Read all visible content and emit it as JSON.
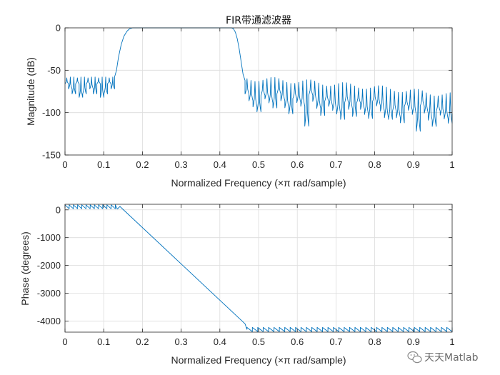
{
  "chart_data": [
    {
      "type": "line",
      "title": "FIR带通滤波器",
      "xlabel": "Normalized Frequency  (×π rad/sample)",
      "ylabel": "Magnitude (dB)",
      "xlim": [
        0,
        1
      ],
      "ylim": [
        -150,
        0
      ],
      "xticks": [
        "0",
        "0.1",
        "0.2",
        "0.3",
        "0.4",
        "0.5",
        "0.6",
        "0.7",
        "0.8",
        "0.9",
        "1"
      ],
      "yticks": [
        "0",
        "-50",
        "-100",
        "-150"
      ],
      "grid": true,
      "series": [
        {
          "color": "#0072BD",
          "passband": [
            0.17,
            0.43
          ],
          "transition_points": {
            "x": [
              0.128,
              0.133,
              0.138,
              0.145,
              0.152,
              0.16,
              0.167,
              0.175,
              0.43,
              0.435,
              0.44,
              0.445,
              0.45,
              0.455,
              0.46,
              0.465
            ],
            "y": [
              -58,
              -50,
              -35,
              -20,
              -10,
              -4,
              -1,
              0,
              0,
              -1,
              -5,
              -13,
              -25,
              -40,
              -55,
              -62
            ]
          },
          "stopband_low": {
            "x_range": [
              0,
              0.128
            ],
            "ripple_top": [
              -58,
              -57
            ],
            "dip_depth": -82
          },
          "stopband_high": {
            "x_range": [
              0.465,
              1
            ],
            "ripple_top": [
              -60,
              -95
            ],
            "dip_depth_range": [
              -85,
              -122
            ]
          }
        }
      ]
    },
    {
      "type": "line",
      "title": "",
      "xlabel": "Normalized Frequency  (×π rad/sample)",
      "ylabel": "Phase (degrees)",
      "xlim": [
        0,
        1
      ],
      "ylim": [
        -4400,
        200
      ],
      "xticks": [
        "0",
        "0.1",
        "0.2",
        "0.3",
        "0.4",
        "0.5",
        "0.6",
        "0.7",
        "0.8",
        "0.9",
        "1"
      ],
      "yticks": [
        "0",
        "-1000",
        "-2000",
        "-3000",
        "-4000"
      ],
      "grid": true,
      "series": [
        {
          "color": "#0072BD",
          "sawtooth_low": {
            "x_range": [
              0,
              0.13
            ],
            "top": 200,
            "bottom": 40
          },
          "linear_ramp": {
            "x": [
              0.13,
              0.47
            ],
            "y": [
              60,
              -4150
            ]
          },
          "sawtooth_high": {
            "x_range": [
              0.47,
              1
            ],
            "top": -4230,
            "bottom": -4380
          }
        }
      ]
    }
  ],
  "watermark": {
    "text": "天天Matlab",
    "icon": "wechat-icon"
  }
}
